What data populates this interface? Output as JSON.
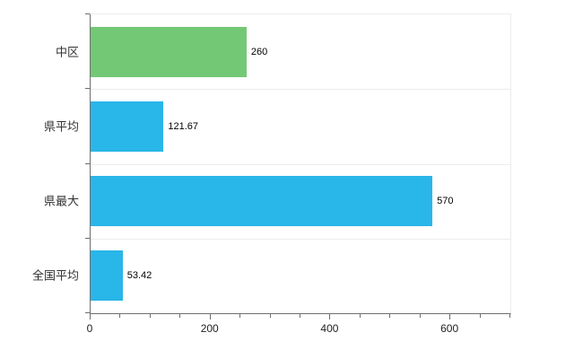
{
  "chart_data": {
    "type": "bar",
    "orientation": "horizontal",
    "title": "",
    "xlabel": "",
    "ylabel": "",
    "categories": [
      "中区",
      "県平均",
      "県最大",
      "全国平均"
    ],
    "values": [
      260,
      121.67,
      570,
      53.42
    ],
    "value_labels": [
      "260",
      "121.67",
      "570",
      "53.42"
    ],
    "bar_colors": [
      "#73c876",
      "#29b6e8",
      "#29b6e8",
      "#29b6e8"
    ],
    "xlim": [
      0,
      700
    ],
    "x_major_ticks": [
      0,
      200,
      400,
      600
    ],
    "x_tick_labels": [
      "0",
      "200",
      "400",
      "600"
    ],
    "x_minor_tick_step": 50,
    "grid": "horizontal band separators, light gray",
    "legend": "none",
    "background": "#ffffff"
  },
  "colors": {
    "axis": "#6e6e6e",
    "grid": "#ececec",
    "text": "#333333",
    "value_text": "#000000",
    "background": "#ffffff"
  }
}
